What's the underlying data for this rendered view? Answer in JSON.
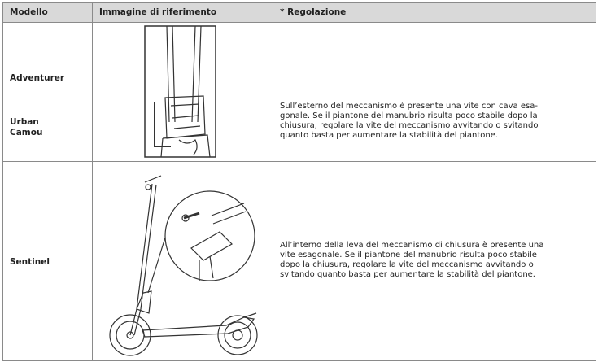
{
  "table": {
    "headers": [
      "Modello",
      "Immagine di riferimento",
      "* Regolazione"
    ],
    "rows": [
      {
        "models": [
          "Adventurer",
          "Urban Camou"
        ],
        "description": [
          "Sull’esterno del meccanismo è presente una vite con cava esa-",
          "gonale. Se il piantone del manubrio risulta poco stabile dopo la",
          "chiusura, regolare la vite del meccanismo avvitando o svitando",
          "quanto basta per aumentare la stabilità del piantone."
        ]
      },
      {
        "models": [
          "Sentinel"
        ],
        "description": [
          "All’interno della leva del meccanismo di chiusura è presente una",
          "vite esagonale. Se il piantone del manubrio risulta poco stabile",
          "dopo la chiusura, regolare la vite del meccanismo avvitando o",
          "svitando quanto basta per aumentare la stabilità del piantone."
        ]
      }
    ]
  }
}
